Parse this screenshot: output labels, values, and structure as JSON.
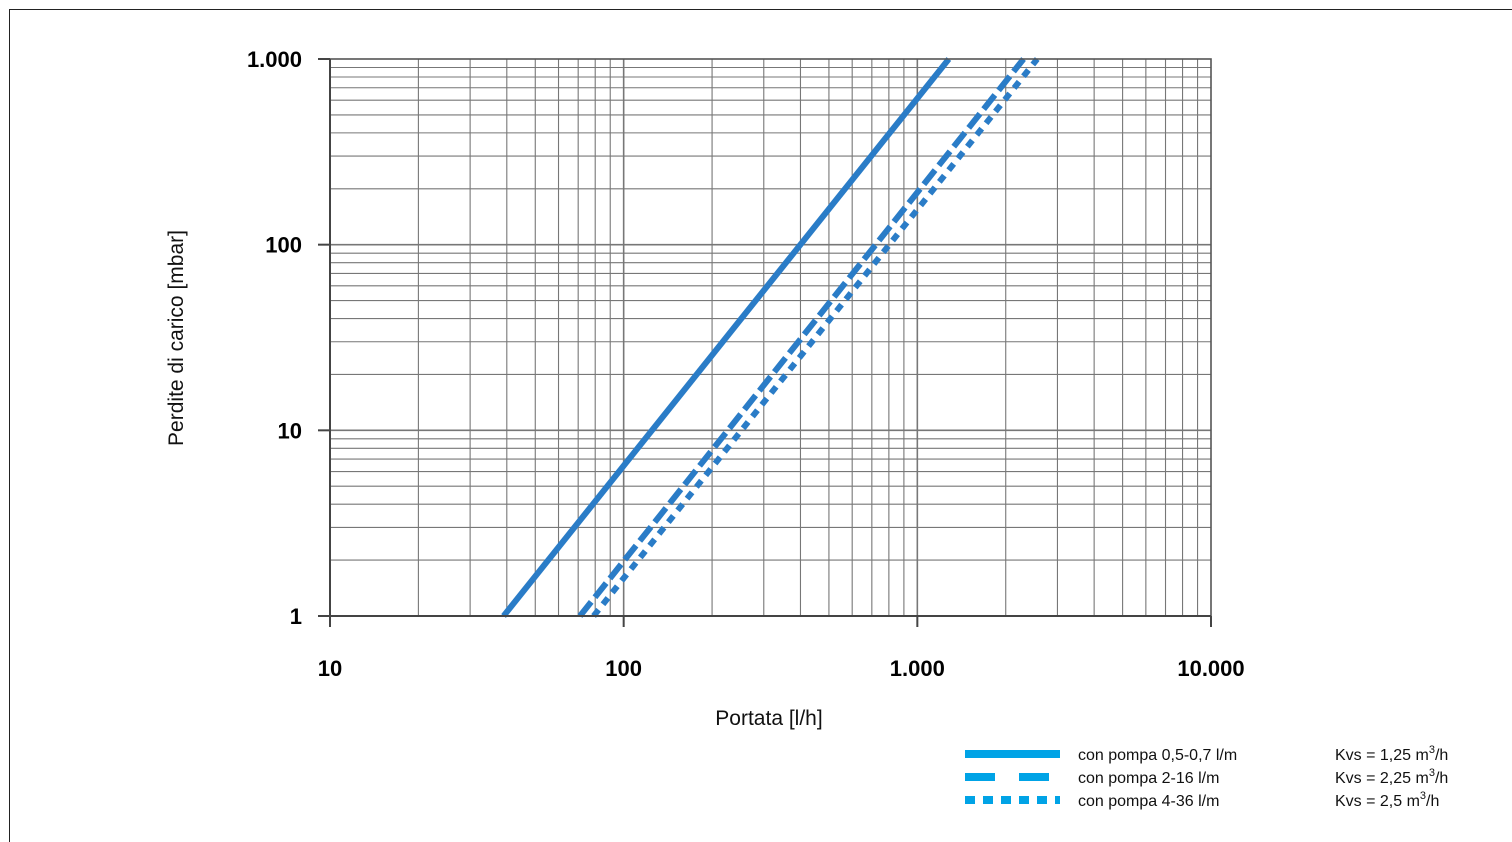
{
  "chart_data": {
    "type": "line",
    "xscale": "log",
    "yscale": "log",
    "xlim": [
      10,
      10000
    ],
    "ylim": [
      1,
      1000
    ],
    "grid": true,
    "xlabel": "Portata [l/h]",
    "ylabel": "Perdite di carico [mbar]",
    "x_ticks": [
      {
        "value": 10,
        "label": "10"
      },
      {
        "value": 100,
        "label": "100"
      },
      {
        "value": 1000,
        "label": "1.000"
      },
      {
        "value": 10000,
        "label": "10.000"
      }
    ],
    "y_ticks": [
      {
        "value": 1,
        "label": "1"
      },
      {
        "value": 10,
        "label": "10"
      },
      {
        "value": 100,
        "label": "100"
      },
      {
        "value": 1000,
        "label": "1.000"
      }
    ],
    "legend_position": "bottom-right",
    "series": [
      {
        "name": "con pompa 0,5-0,7 l/m",
        "kvs_prefix": "Kvs = 1,25 m",
        "kvs_sup": "3",
        "kvs_suffix": "/h",
        "style": "solid",
        "color": "#2a7cc7",
        "legend_color": "#00a3e6",
        "x": [
          39,
          1280
        ],
        "y": [
          1,
          1000
        ]
      },
      {
        "name": "con pompa 2-16 l/m",
        "kvs_prefix": "Kvs = 2,25 m",
        "kvs_sup": "3",
        "kvs_suffix": "/h",
        "style": "dashed",
        "color": "#2a7cc7",
        "legend_color": "#00a3e6",
        "x": [
          71,
          2300
        ],
        "y": [
          1,
          1000
        ]
      },
      {
        "name": "con pompa 4-36 l/m",
        "kvs_prefix": "Kvs = 2,5 m",
        "kvs_sup": "3",
        "kvs_suffix": "/h",
        "style": "dotted",
        "color": "#2a7cc7",
        "legend_color": "#00a3e6",
        "x": [
          79,
          2560
        ],
        "y": [
          1,
          1000
        ]
      }
    ]
  }
}
